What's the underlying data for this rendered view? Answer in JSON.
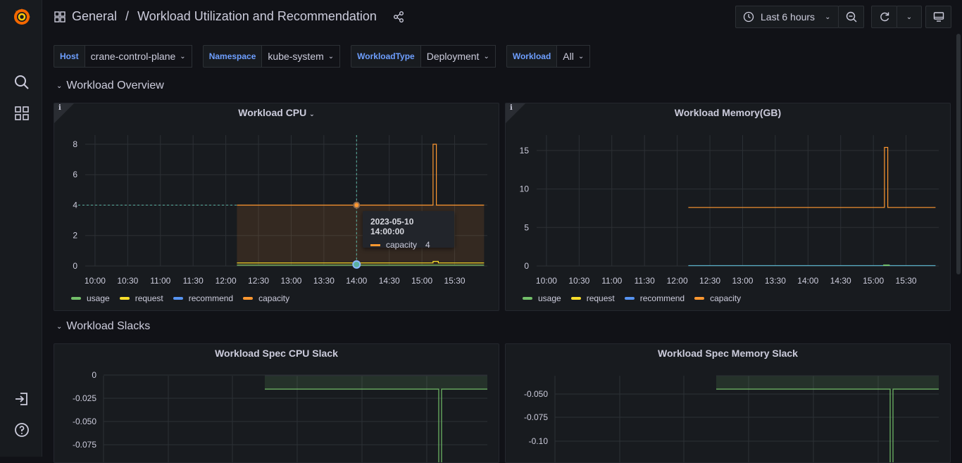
{
  "colors": {
    "usage": "#73bf69",
    "request": "#fade2a",
    "recommend": "#5794f2",
    "capacity": "#ff9830",
    "tooltip_ring": "#8ab8ff"
  },
  "breadcrumb": {
    "folder": "General",
    "separator": "/",
    "dashboard": "Workload Utilization and Recommendation"
  },
  "toolbar": {
    "time_range": "Last 6 hours"
  },
  "variables": [
    {
      "label": "Host",
      "value": "crane-control-plane"
    },
    {
      "label": "Namespace",
      "value": "kube-system"
    },
    {
      "label": "WorkloadType",
      "value": "Deployment"
    },
    {
      "label": "Workload",
      "value": "All"
    }
  ],
  "rows": {
    "overview": "Workload Overview",
    "slacks": "Workload Slacks"
  },
  "panels": {
    "cpu": {
      "title": "Workload CPU"
    },
    "memory": {
      "title": "Workload Memory(GB)"
    },
    "cpu_slack": {
      "title": "Workload Spec CPU Slack"
    },
    "mem_slack": {
      "title": "Workload Spec Memory Slack"
    }
  },
  "legend": [
    "usage",
    "request",
    "recommend",
    "capacity"
  ],
  "tooltip": {
    "time": "2023-05-10 14:00:00",
    "series": "capacity",
    "value": "4"
  },
  "chart_data": [
    {
      "type": "line",
      "name": "Workload CPU",
      "x_ticks": [
        "10:00",
        "10:30",
        "11:00",
        "11:30",
        "12:00",
        "12:30",
        "13:00",
        "13:30",
        "14:00",
        "14:30",
        "15:00",
        "15:30"
      ],
      "y_ticks": [
        "0",
        "2",
        "4",
        "6",
        "8"
      ],
      "ylim": [
        0,
        8.6
      ],
      "series": [
        {
          "name": "capacity",
          "points": [
            [
              12.17,
              4
            ],
            [
              15.17,
              4
            ],
            [
              15.17,
              8
            ],
            [
              15.22,
              8
            ],
            [
              15.22,
              4
            ],
            [
              15.95,
              4
            ]
          ]
        },
        {
          "name": "request",
          "points": [
            [
              12.17,
              0.2
            ],
            [
              15.17,
              0.2
            ],
            [
              15.17,
              0.3
            ],
            [
              15.25,
              0.3
            ],
            [
              15.25,
              0.2
            ],
            [
              15.95,
              0.2
            ]
          ]
        },
        {
          "name": "usage",
          "points": [
            [
              12.17,
              0.05
            ],
            [
              15.95,
              0.05
            ]
          ]
        }
      ]
    },
    {
      "type": "line",
      "name": "Workload Memory(GB)",
      "x_ticks": [
        "10:00",
        "10:30",
        "11:00",
        "11:30",
        "12:00",
        "12:30",
        "13:00",
        "13:30",
        "14:00",
        "14:30",
        "15:00",
        "15:30"
      ],
      "y_ticks": [
        "0",
        "5",
        "10",
        "15"
      ],
      "ylim": [
        0,
        17
      ],
      "series": [
        {
          "name": "capacity",
          "points": [
            [
              12.17,
              7.6
            ],
            [
              15.17,
              7.6
            ],
            [
              15.17,
              15.4
            ],
            [
              15.22,
              15.4
            ],
            [
              15.22,
              7.6
            ],
            [
              15.95,
              7.6
            ]
          ]
        },
        {
          "name": "recommend",
          "points": [
            [
              12.17,
              0.05
            ],
            [
              15.95,
              0.05
            ]
          ]
        }
      ]
    },
    {
      "type": "line",
      "name": "Workload Spec CPU Slack",
      "y_ticks": [
        "0",
        "-0.025",
        "-0.050",
        "-0.075"
      ],
      "ylim": [
        -0.09,
        0.002
      ]
    },
    {
      "type": "line",
      "name": "Workload Spec Memory Slack",
      "y_ticks": [
        "-0.050",
        "-0.075",
        "-0.10"
      ],
      "ylim": [
        -0.125,
        -0.03
      ]
    }
  ]
}
